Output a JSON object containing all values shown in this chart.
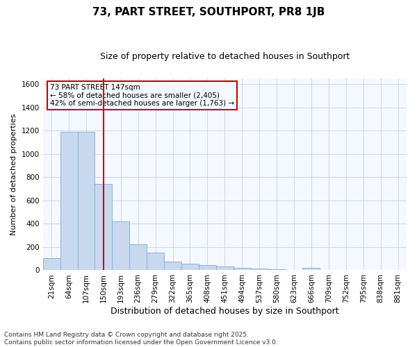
{
  "title": "73, PART STREET, SOUTHPORT, PR8 1JB",
  "subtitle": "Size of property relative to detached houses in Southport",
  "xlabel": "Distribution of detached houses by size in Southport",
  "ylabel": "Number of detached properties",
  "categories": [
    "21sqm",
    "64sqm",
    "107sqm",
    "150sqm",
    "193sqm",
    "236sqm",
    "279sqm",
    "322sqm",
    "365sqm",
    "408sqm",
    "451sqm",
    "494sqm",
    "537sqm",
    "580sqm",
    "623sqm",
    "666sqm",
    "709sqm",
    "752sqm",
    "795sqm",
    "838sqm",
    "881sqm"
  ],
  "values": [
    105,
    1190,
    1190,
    740,
    420,
    225,
    150,
    75,
    55,
    42,
    30,
    18,
    12,
    8,
    4,
    22,
    0,
    0,
    0,
    0,
    0
  ],
  "bar_color": "#c8d8ee",
  "bar_edge_color": "#8ab0d8",
  "vline_x": 3,
  "vline_color": "#cc0000",
  "annotation_line1": "73 PART STREET 147sqm",
  "annotation_line2": "← 58% of detached houses are smaller (2,405)",
  "annotation_line3": "42% of semi-detached houses are larger (1,763) →",
  "annotation_box_edge": "#cc0000",
  "ylim": [
    0,
    1650
  ],
  "yticks": [
    0,
    200,
    400,
    600,
    800,
    1000,
    1200,
    1400,
    1600
  ],
  "footer_line1": "Contains HM Land Registry data © Crown copyright and database right 2025.",
  "footer_line2": "Contains public sector information licensed under the Open Government Licence v3.0.",
  "bg_color": "#ffffff",
  "plot_bg_color": "#f5f8ff",
  "grid_color": "#c8d0e0",
  "title_fontsize": 11,
  "subtitle_fontsize": 9,
  "xlabel_fontsize": 9,
  "ylabel_fontsize": 8,
  "tick_fontsize": 7.5,
  "annot_fontsize": 7.5,
  "footer_fontsize": 6.5
}
